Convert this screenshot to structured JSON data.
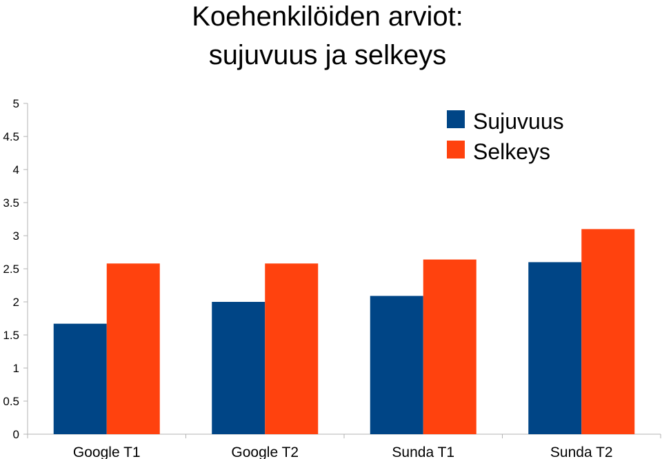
{
  "chart_data": {
    "type": "bar",
    "title": [
      "Koehenkilöiden arviot:",
      "sujuvuus ja selkeys"
    ],
    "categories": [
      "Google T1",
      "Google T2",
      "Sunda T1",
      "Sunda T2"
    ],
    "series": [
      {
        "name": "Sujuvuus",
        "color": "#004586",
        "values": [
          1.67,
          2.0,
          2.09,
          2.6
        ]
      },
      {
        "name": "Selkeys",
        "color": "#ff420e",
        "values": [
          2.58,
          2.58,
          2.64,
          3.1
        ]
      }
    ],
    "ylim": [
      0,
      5
    ],
    "yticks": [
      "0",
      "0.5",
      "1",
      "1.5",
      "2",
      "2.5",
      "3",
      "3.5",
      "4",
      "4.5",
      "5"
    ],
    "xlabel": "",
    "ylabel": "",
    "grid": false,
    "legend_position": "top-right"
  }
}
